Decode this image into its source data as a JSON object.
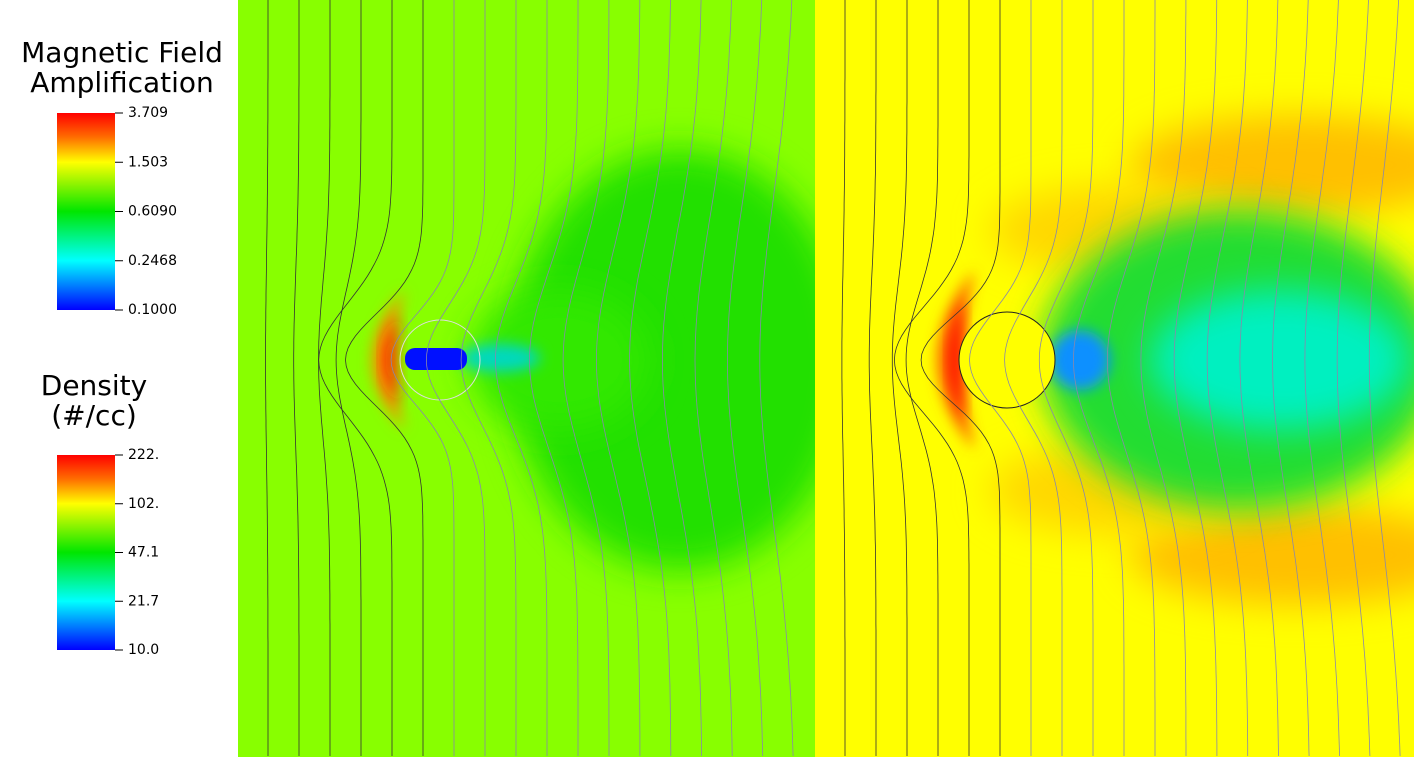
{
  "legends": [
    {
      "title": [
        "Magnetic Field",
        "Amplification"
      ],
      "tick_labels": [
        "3.709",
        "1.503",
        "0.6090",
        "0.2468",
        "0.1000"
      ]
    },
    {
      "title": [
        "Density",
        "(#/cc)"
      ],
      "tick_labels": [
        "222.",
        "102.",
        "47.1",
        "21.7",
        "10.0"
      ]
    }
  ]
}
